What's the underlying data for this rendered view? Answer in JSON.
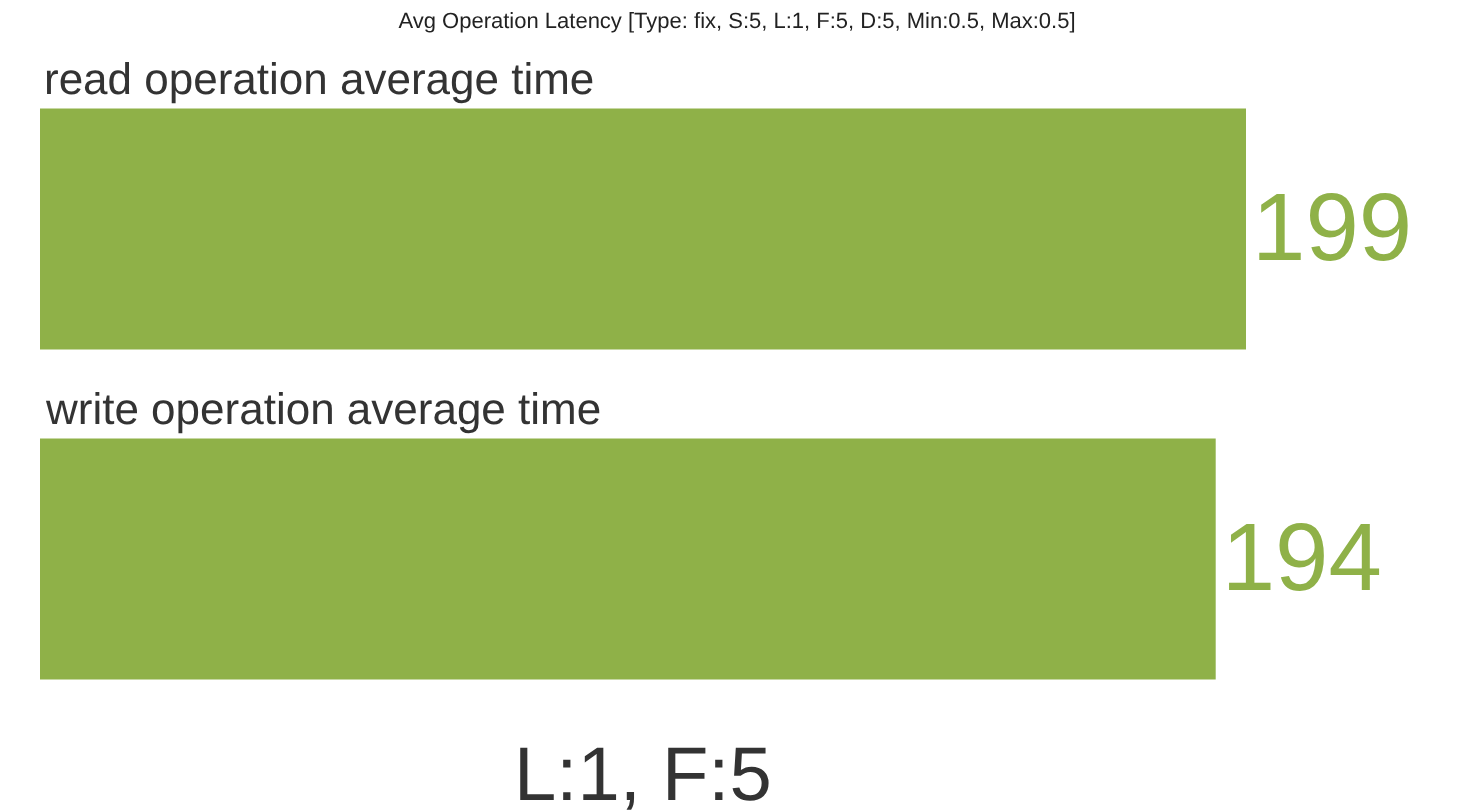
{
  "chart_data": {
    "type": "bar",
    "title": "Avg Operation Latency [Type: fix, S:5, L:1, F:5, D:5, Min:0.5, Max:0.5]",
    "orientation": "horizontal",
    "categories": [
      "read operation average time",
      "write operation average time"
    ],
    "values": [
      199,
      194
    ],
    "color": "#8fb148",
    "xlim": [
      0,
      199
    ],
    "tick_labels": "y",
    "data_labels": true,
    "annotations": [
      "L:1, F:5"
    ]
  }
}
